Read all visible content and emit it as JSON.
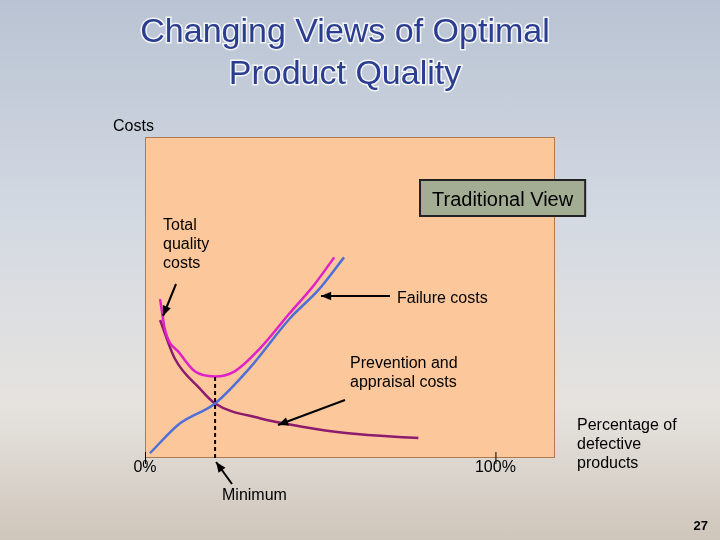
{
  "chart_data": {
    "type": "line",
    "title": "Changing Views of Optimal Product Quality",
    "x_label": "Percentage of defective products",
    "y_label": "Costs",
    "xlim": [
      0,
      117
    ],
    "ylim": [
      0,
      100
    ],
    "xticks": [
      {
        "value": 0,
        "label": "0%"
      },
      {
        "value": 100,
        "label": "100%"
      }
    ],
    "tick_labels": "x",
    "grid": false,
    "series": [
      {
        "name": "Total quality costs",
        "color": "#e020c8",
        "x": [
          4.3,
          5.7,
          10,
          14.2,
          20,
          25.6,
          32.7,
          41.2,
          48.3,
          54
        ],
        "values": [
          49.5,
          40,
          32.5,
          27,
          25.4,
          27,
          34,
          45,
          54,
          62.5
        ]
      },
      {
        "name": "Failure costs",
        "color": "#4f6fd8",
        "x": [
          1.4,
          10,
          20,
          29.8,
          41.2,
          49.7,
          56.8
        ],
        "values": [
          1.5,
          10.8,
          17,
          27.9,
          43.3,
          52.6,
          62.5
        ]
      },
      {
        "name": "Prevention and appraisal costs",
        "color": "#8e1a6e",
        "x": [
          4.3,
          8.5,
          15.6,
          20,
          32.7,
          44,
          58,
          78
        ],
        "values": [
          43,
          31,
          21.7,
          17,
          12.4,
          9.9,
          7.7,
          6.2
        ]
      }
    ],
    "annotations": [
      {
        "text": "Traditional View"
      },
      {
        "text": "Minimum",
        "x": 20,
        "y": 25.4
      }
    ],
    "page_number": "27"
  }
}
